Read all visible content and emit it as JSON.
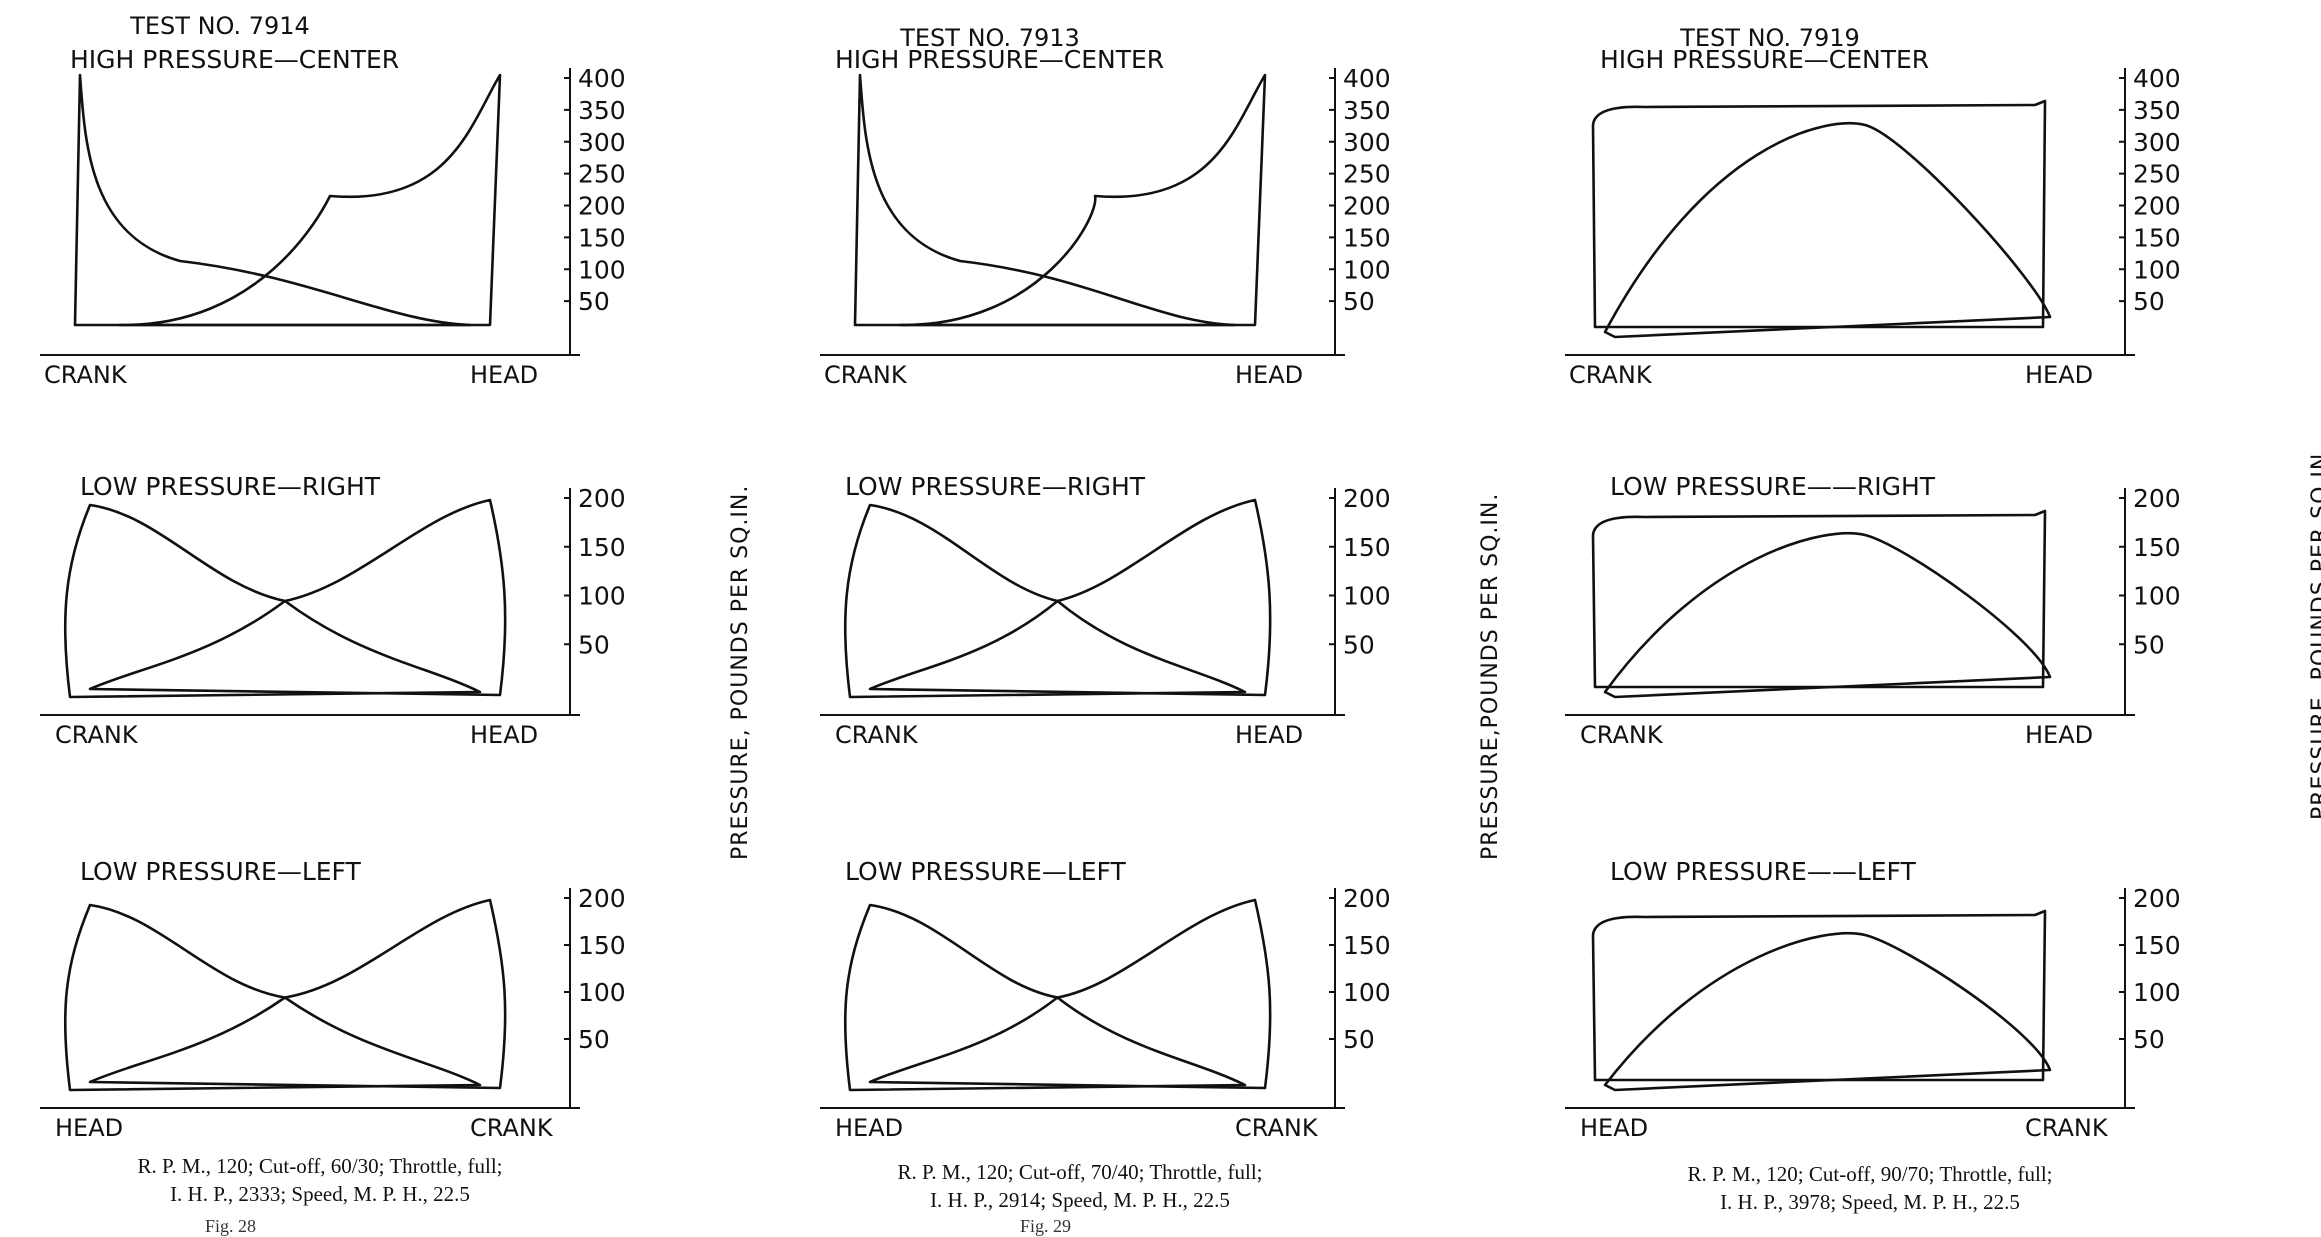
{
  "side_label": "PRESSURE, POUNDS PER SQ.IN.",
  "side_label_variant": "PRESSURE,POUNDS PER SQ.IN.",
  "figures": [
    {
      "test": "TEST NO. 7914",
      "caption_line1": "R. P. M., 120; Cut-off, 60/30; Throttle, full;",
      "caption_line2": "I. H. P., 2333; Speed, M. P. H., 22.5",
      "fig_label": "Fig. 28",
      "diagrams": [
        {
          "title": "HIGH PRESSURE—CENTER",
          "ticks": [
            "400",
            "350",
            "300",
            "250",
            "200",
            "150",
            "100",
            "50"
          ],
          "left": "CRANK",
          "right": "HEAD"
        },
        {
          "title": "LOW PRESSURE—RIGHT",
          "ticks": [
            "200",
            "150",
            "100",
            "50"
          ],
          "left": "CRANK",
          "right": "HEAD"
        },
        {
          "title": "LOW PRESSURE—LEFT",
          "ticks": [
            "200",
            "150",
            "100",
            "50"
          ],
          "left": "HEAD",
          "right": "CRANK"
        }
      ]
    },
    {
      "test": "TEST NO. 7913",
      "caption_line1": "R. P. M., 120; Cut-off, 70/40; Throttle, full;",
      "caption_line2": "I. H. P., 2914; Speed, M. P. H., 22.5",
      "fig_label": "Fig. 29",
      "diagrams": [
        {
          "title": "HIGH PRESSURE—CENTER",
          "ticks": [
            "400",
            "350",
            "300",
            "250",
            "200",
            "150",
            "100",
            "50"
          ],
          "left": "CRANK",
          "right": "HEAD"
        },
        {
          "title": "LOW PRESSURE—RIGHT",
          "ticks": [
            "200",
            "150",
            "100",
            "50"
          ],
          "left": "CRANK",
          "right": "HEAD"
        },
        {
          "title": "LOW PRESSURE—LEFT",
          "ticks": [
            "200",
            "150",
            "100",
            "50"
          ],
          "left": "HEAD",
          "right": "CRANK"
        }
      ]
    },
    {
      "test": "TEST NO. 7919",
      "caption_line1": "R. P. M., 120; Cut-off, 90/70; Throttle, full;",
      "caption_line2": "I. H. P., 3978; Speed, M. P. H., 22.5",
      "fig_label": "",
      "diagrams": [
        {
          "title": "HIGH PRESSURE—CENTER",
          "ticks": [
            "400",
            "350",
            "300",
            "250",
            "200",
            "150",
            "100",
            "50"
          ],
          "left": "CRANK",
          "right": "HEAD"
        },
        {
          "title": "LOW PRESSURE——RIGHT",
          "ticks": [
            "200",
            "150",
            "100",
            "50"
          ],
          "left": "CRANK",
          "right": "HEAD"
        },
        {
          "title": "LOW PRESSURE——LEFT",
          "ticks": [
            "200",
            "150",
            "100",
            "50"
          ],
          "left": "HEAD",
          "right": "CRANK"
        }
      ]
    }
  ]
}
